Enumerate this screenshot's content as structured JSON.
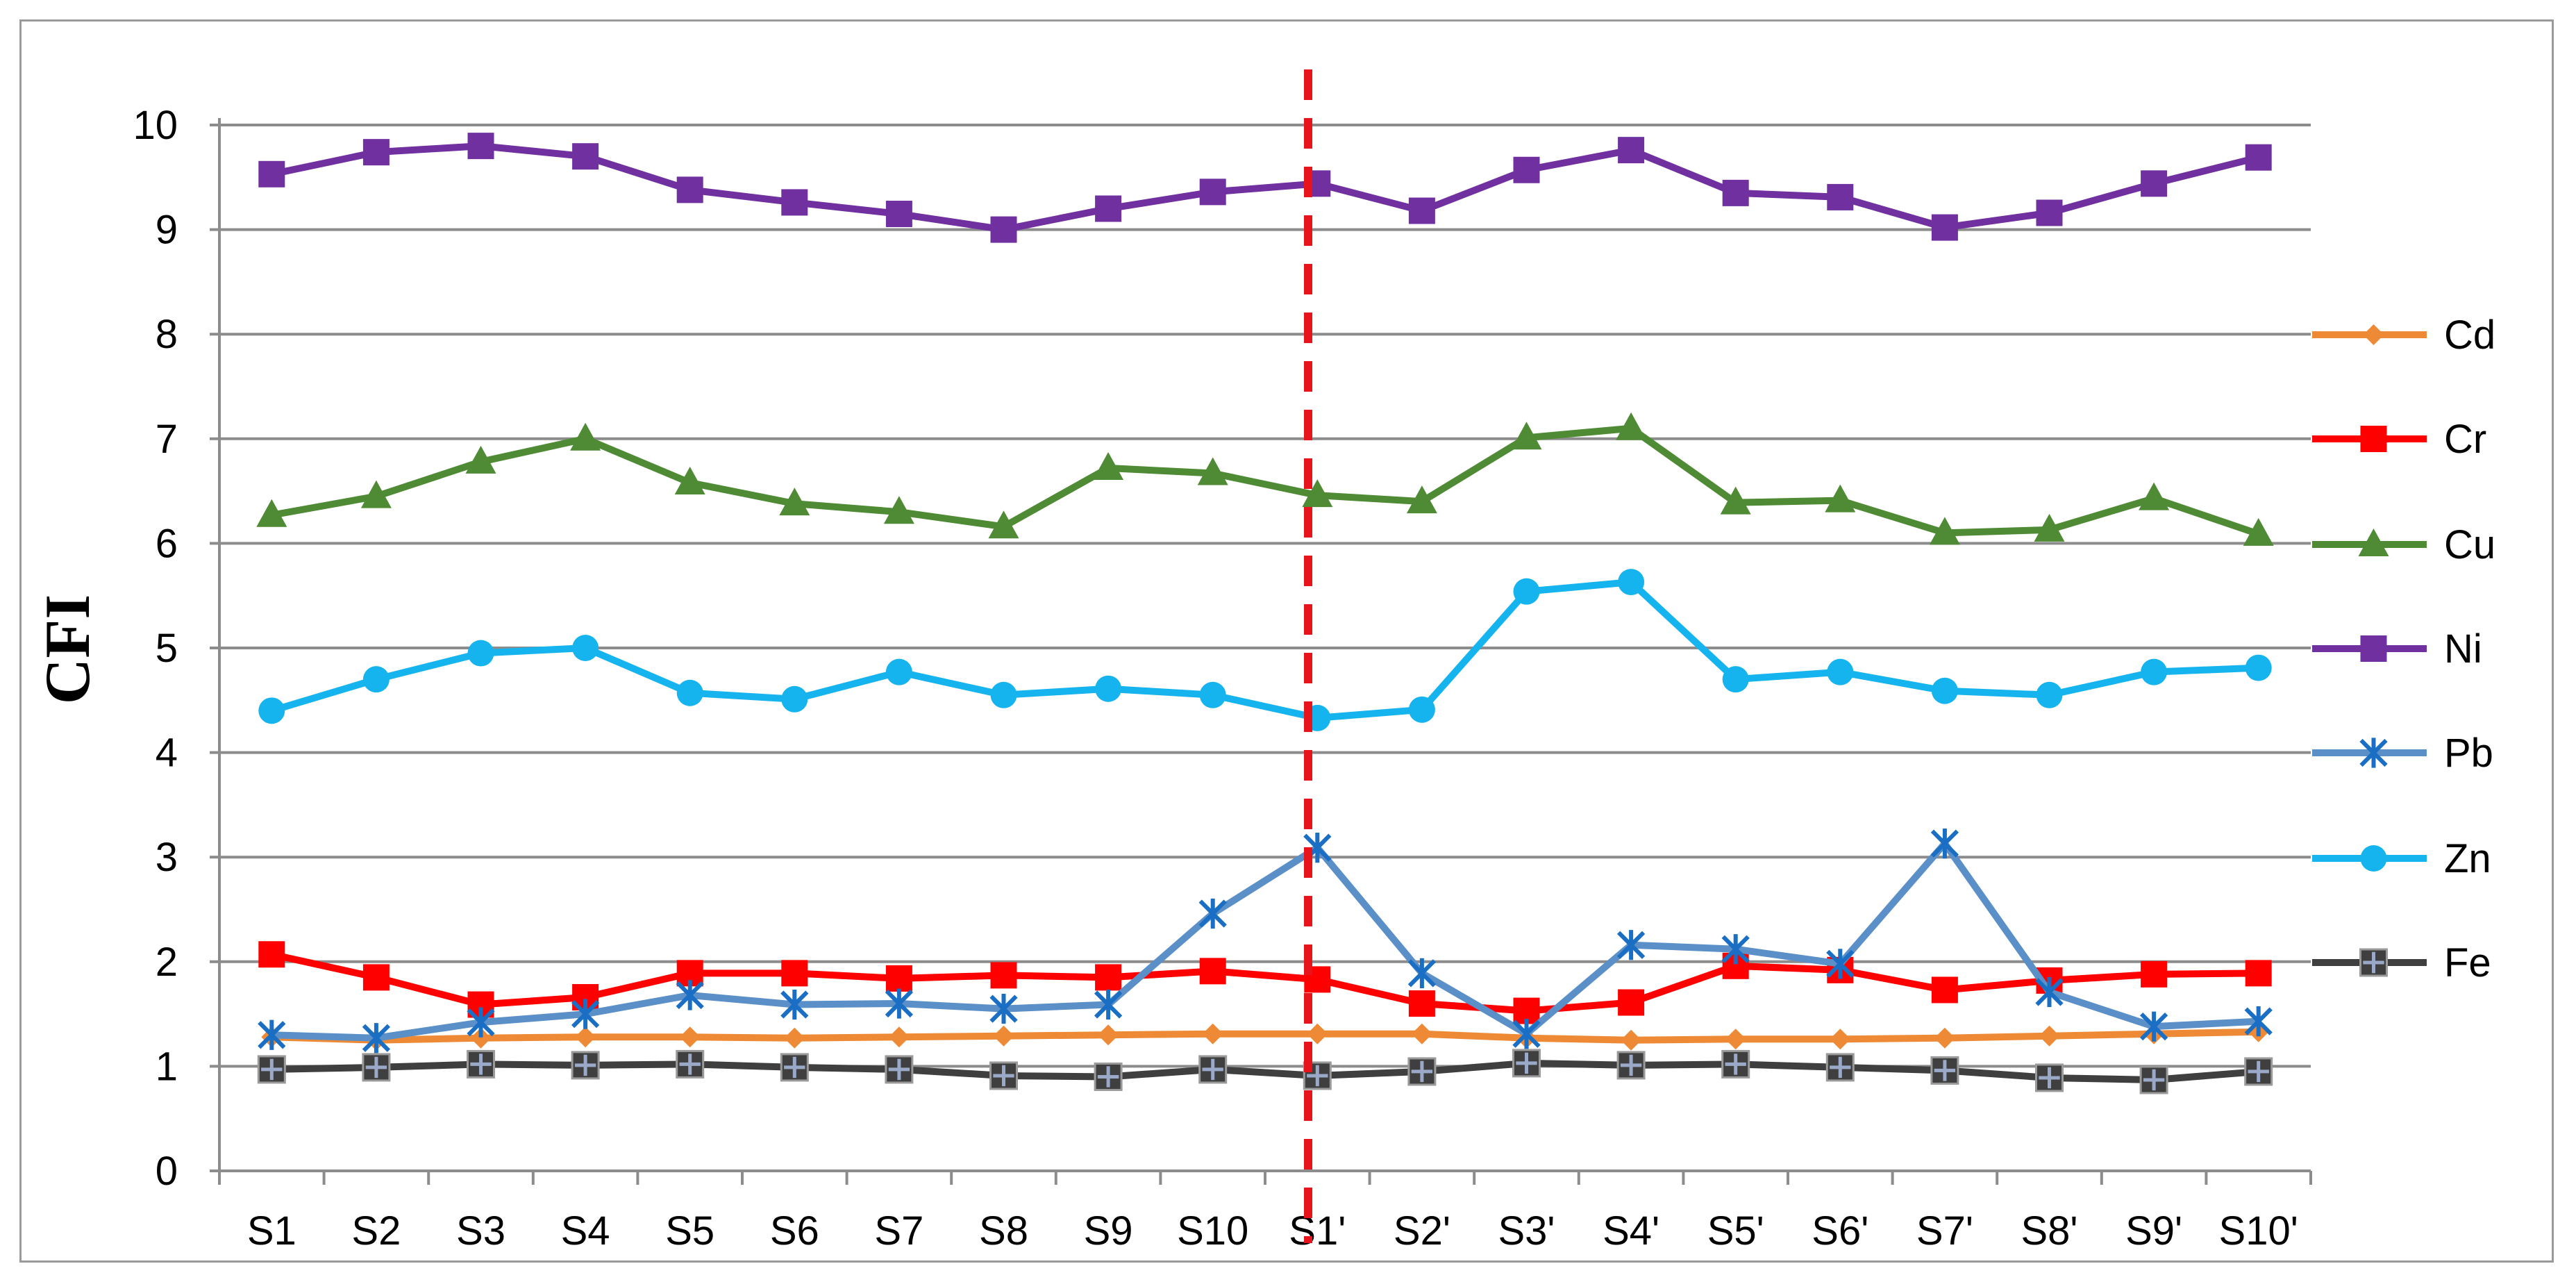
{
  "chart_data": {
    "type": "line",
    "title": "",
    "xlabel": "",
    "ylabel": "CFI",
    "ylim": [
      0,
      10
    ],
    "yticks": [
      "0",
      "1",
      "2",
      "3",
      "4",
      "5",
      "6",
      "7",
      "8",
      "9",
      "10"
    ],
    "grid": true,
    "legend_position": "right",
    "divider_after": "S10",
    "divider_color": "#e8141c",
    "categories": [
      "S1",
      "S2",
      "S3",
      "S4",
      "S5",
      "S6",
      "S7",
      "S8",
      "S9",
      "S10",
      "S1'",
      "S2'",
      "S3'",
      "S4'",
      "S5'",
      "S6'",
      "S7'",
      "S8'",
      "S9'",
      "S10'"
    ],
    "series": [
      {
        "name": "Cd",
        "color": "#ee8a35",
        "marker": "diamond",
        "values": [
          1.28,
          1.25,
          1.27,
          1.28,
          1.28,
          1.27,
          1.28,
          1.29,
          1.3,
          1.31,
          1.31,
          1.31,
          1.27,
          1.25,
          1.26,
          1.26,
          1.27,
          1.29,
          1.31,
          1.33
        ]
      },
      {
        "name": "Cr",
        "color": "#ff0000",
        "marker": "square",
        "values": [
          2.07,
          1.85,
          1.59,
          1.66,
          1.89,
          1.89,
          1.84,
          1.87,
          1.85,
          1.91,
          1.83,
          1.6,
          1.53,
          1.61,
          1.96,
          1.92,
          1.73,
          1.82,
          1.88,
          1.89
        ]
      },
      {
        "name": "Cu",
        "color": "#4f8a35",
        "marker": "triangle",
        "values": [
          6.27,
          6.45,
          6.78,
          7.0,
          6.58,
          6.38,
          6.3,
          6.16,
          6.72,
          6.67,
          6.46,
          6.4,
          7.01,
          7.1,
          6.39,
          6.41,
          6.1,
          6.13,
          6.43,
          6.09
        ]
      },
      {
        "name": "Ni",
        "color": "#7030a0",
        "marker": "square",
        "values": [
          9.53,
          9.74,
          9.8,
          9.7,
          9.38,
          9.26,
          9.15,
          9.0,
          9.2,
          9.36,
          9.44,
          9.18,
          9.57,
          9.76,
          9.35,
          9.31,
          9.02,
          9.16,
          9.44,
          9.69
        ]
      },
      {
        "name": "Pb",
        "color": "#5b8fc7",
        "marker": "star",
        "values": [
          1.3,
          1.27,
          1.42,
          1.5,
          1.68,
          1.59,
          1.6,
          1.55,
          1.59,
          2.46,
          3.09,
          1.89,
          1.31,
          2.16,
          2.12,
          1.98,
          3.13,
          1.71,
          1.38,
          1.43
        ]
      },
      {
        "name": "Zn",
        "color": "#16b4ee",
        "marker": "circle",
        "values": [
          4.4,
          4.7,
          4.95,
          5.0,
          4.57,
          4.51,
          4.77,
          4.55,
          4.61,
          4.55,
          4.33,
          4.41,
          5.54,
          5.63,
          4.7,
          4.77,
          4.59,
          4.55,
          4.77,
          4.81
        ]
      },
      {
        "name": "Fe",
        "color": "#3f3f3f",
        "marker": "square-plus",
        "values": [
          0.97,
          0.99,
          1.02,
          1.01,
          1.02,
          0.99,
          0.97,
          0.91,
          0.9,
          0.97,
          0.91,
          0.95,
          1.03,
          1.01,
          1.02,
          0.99,
          0.96,
          0.89,
          0.87,
          0.95
        ]
      }
    ]
  }
}
